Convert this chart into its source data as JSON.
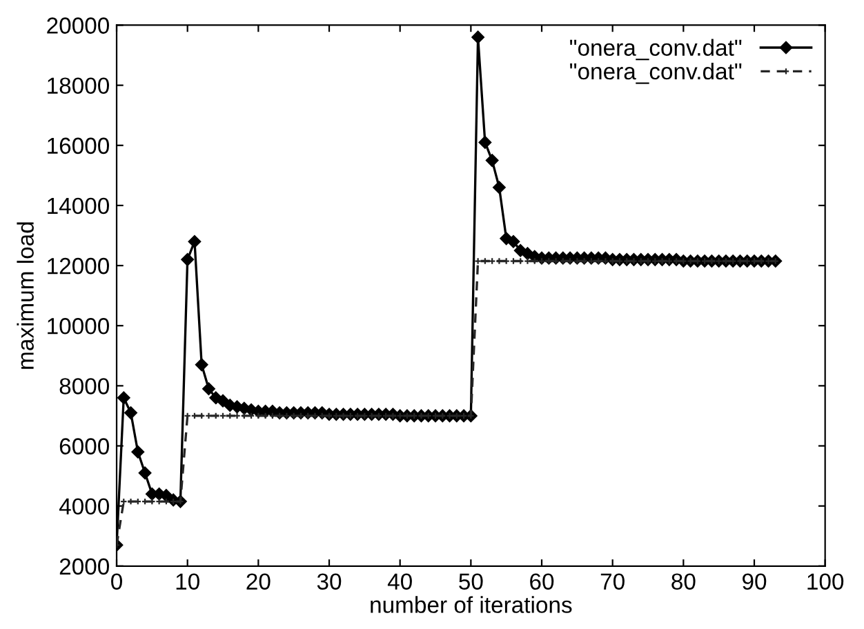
{
  "chart_data": {
    "type": "line",
    "xlabel": "number of iterations",
    "ylabel": "maximum load",
    "x": [
      0,
      1,
      2,
      3,
      4,
      5,
      6,
      7,
      8,
      9,
      10,
      11,
      12,
      13,
      14,
      15,
      16,
      17,
      18,
      19,
      20,
      21,
      22,
      23,
      24,
      25,
      26,
      27,
      28,
      29,
      30,
      31,
      32,
      33,
      34,
      35,
      36,
      37,
      38,
      39,
      40,
      41,
      42,
      43,
      44,
      45,
      46,
      47,
      48,
      49,
      50,
      51,
      52,
      53,
      54,
      55,
      56,
      57,
      58,
      59,
      60,
      61,
      62,
      63,
      64,
      65,
      66,
      67,
      68,
      69,
      70,
      71,
      72,
      73,
      74,
      75,
      76,
      77,
      78,
      79,
      80,
      81,
      82,
      83,
      84,
      85,
      86,
      87,
      88,
      89,
      90,
      91,
      92,
      93
    ],
    "series": [
      {
        "name": "\"onera_conv.dat\"",
        "color": "#000000",
        "marker": "diamond",
        "line_style": "solid",
        "values": [
          2700,
          7600,
          7100,
          5800,
          5100,
          4400,
          4400,
          4350,
          4200,
          4150,
          12200,
          12800,
          8700,
          7900,
          7600,
          7500,
          7350,
          7300,
          7250,
          7200,
          7150,
          7150,
          7150,
          7100,
          7100,
          7100,
          7100,
          7100,
          7100,
          7100,
          7050,
          7050,
          7050,
          7050,
          7050,
          7050,
          7050,
          7050,
          7050,
          7050,
          7000,
          7000,
          7000,
          7000,
          7000,
          7000,
          7000,
          7000,
          7000,
          7000,
          7000,
          19600,
          16100,
          15500,
          14600,
          12900,
          12800,
          12500,
          12400,
          12300,
          12250,
          12250,
          12250,
          12250,
          12250,
          12250,
          12250,
          12250,
          12250,
          12250,
          12200,
          12200,
          12200,
          12200,
          12200,
          12200,
          12200,
          12200,
          12200,
          12200,
          12150,
          12150,
          12150,
          12150,
          12150,
          12150,
          12150,
          12150,
          12150,
          12150,
          12150,
          12150,
          12150,
          12150
        ]
      },
      {
        "name": "\"onera_conv.dat\"",
        "color": "#262626",
        "marker": "cross",
        "line_style": "dashed",
        "values": [
          2700,
          4150,
          4150,
          4150,
          4150,
          4150,
          4150,
          4150,
          4150,
          4150,
          7000,
          7000,
          7000,
          7000,
          7000,
          7000,
          7000,
          7000,
          7000,
          7000,
          7000,
          7000,
          7000,
          7000,
          7000,
          7000,
          7000,
          7000,
          7000,
          7000,
          7000,
          7000,
          7000,
          7000,
          7000,
          7000,
          7000,
          7000,
          7000,
          7000,
          7000,
          7000,
          7000,
          7000,
          7000,
          7000,
          7000,
          7000,
          7000,
          7000,
          7000,
          12150,
          12150,
          12150,
          12150,
          12150,
          12150,
          12150,
          12150,
          12150,
          12150,
          12150,
          12150,
          12150,
          12150,
          12150,
          12150,
          12150,
          12150,
          12150,
          12150,
          12150,
          12150,
          12150,
          12150,
          12150,
          12150,
          12150,
          12150,
          12150,
          12150,
          12150,
          12150,
          12150,
          12150,
          12150,
          12150,
          12150,
          12150,
          12150,
          12150,
          12150,
          12150,
          12150
        ]
      }
    ],
    "xlim": [
      0,
      100
    ],
    "xticks": [
      0,
      10,
      20,
      30,
      40,
      50,
      60,
      70,
      80,
      90,
      100
    ],
    "ylim": [
      2000,
      20000
    ],
    "yticks": [
      2000,
      4000,
      6000,
      8000,
      10000,
      12000,
      14000,
      16000,
      18000,
      20000
    ],
    "grid": false,
    "legend": "top right"
  }
}
